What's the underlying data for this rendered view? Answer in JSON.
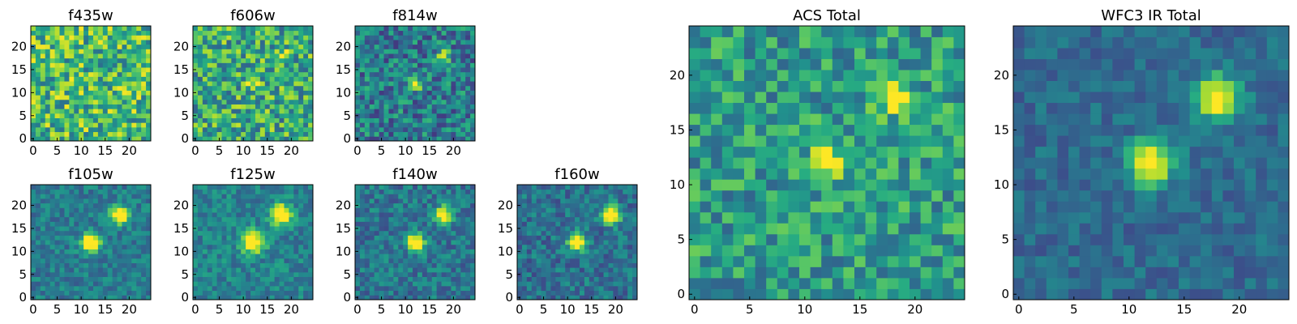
{
  "figure": {
    "background": "#ffffff",
    "colormap": "viridis"
  },
  "chart_data": [
    {
      "type": "heatmap",
      "title": "f435w",
      "grid_size": 25,
      "xlim": [
        0,
        24
      ],
      "ylim": [
        0,
        24
      ],
      "xticks": [
        "0",
        "5",
        "10",
        "15",
        "20"
      ],
      "yticks": [
        "0",
        "5",
        "10",
        "15",
        "20"
      ],
      "sources": [],
      "noise": 0.62,
      "baseline": 0.68,
      "seed": 11,
      "colorbar": false
    },
    {
      "type": "heatmap",
      "title": "f606w",
      "grid_size": 25,
      "xlim": [
        0,
        24
      ],
      "ylim": [
        0,
        24
      ],
      "xticks": [
        "0",
        "5",
        "10",
        "15",
        "20"
      ],
      "yticks": [
        "0",
        "5",
        "10",
        "15",
        "20"
      ],
      "sources": [
        {
          "x": 12,
          "y": 12,
          "sigma": 1.0,
          "amp": 0.35
        },
        {
          "x": 18,
          "y": 18,
          "sigma": 1.0,
          "amp": 0.35
        }
      ],
      "noise": 0.6,
      "baseline": 0.62,
      "seed": 23,
      "colorbar": false
    },
    {
      "type": "heatmap",
      "title": "f814w",
      "grid_size": 25,
      "xlim": [
        0,
        24
      ],
      "ylim": [
        0,
        24
      ],
      "xticks": [
        "0",
        "5",
        "10",
        "15",
        "20"
      ],
      "yticks": [
        "0",
        "5",
        "10",
        "15",
        "20"
      ],
      "sources": [
        {
          "x": 12,
          "y": 12,
          "sigma": 1.0,
          "amp": 0.6
        },
        {
          "x": 18,
          "y": 18,
          "sigma": 1.0,
          "amp": 0.55
        }
      ],
      "noise": 0.5,
      "baseline": 0.42,
      "seed": 37,
      "colorbar": false
    },
    {
      "type": "heatmap",
      "title": "f105w",
      "grid_size": 25,
      "xlim": [
        0,
        24
      ],
      "ylim": [
        0,
        24
      ],
      "xticks": [
        "0",
        "5",
        "10",
        "15",
        "20"
      ],
      "yticks": [
        "0",
        "5",
        "10",
        "15",
        "20"
      ],
      "sources": [
        {
          "x": 12,
          "y": 12,
          "sigma": 1.4,
          "amp": 0.85
        },
        {
          "x": 18,
          "y": 18,
          "sigma": 1.3,
          "amp": 0.85
        }
      ],
      "noise": 0.28,
      "baseline": 0.42,
      "seed": 41,
      "colorbar": false
    },
    {
      "type": "heatmap",
      "title": "f125w",
      "grid_size": 25,
      "xlim": [
        0,
        24
      ],
      "ylim": [
        0,
        24
      ],
      "xticks": [
        "0",
        "5",
        "10",
        "15",
        "20"
      ],
      "yticks": [
        "0",
        "5",
        "10",
        "15",
        "20"
      ],
      "sources": [
        {
          "x": 12,
          "y": 12,
          "sigma": 1.6,
          "amp": 0.8
        },
        {
          "x": 18,
          "y": 18,
          "sigma": 1.5,
          "amp": 0.85
        }
      ],
      "noise": 0.3,
      "baseline": 0.45,
      "seed": 53,
      "colorbar": false
    },
    {
      "type": "heatmap",
      "title": "f140w",
      "grid_size": 25,
      "xlim": [
        0,
        24
      ],
      "ylim": [
        0,
        24
      ],
      "xticks": [
        "0",
        "5",
        "10",
        "15",
        "20"
      ],
      "yticks": [
        "0",
        "5",
        "10",
        "15",
        "20"
      ],
      "sources": [
        {
          "x": 12,
          "y": 12,
          "sigma": 1.3,
          "amp": 0.85
        },
        {
          "x": 18,
          "y": 18,
          "sigma": 1.2,
          "amp": 0.85
        }
      ],
      "noise": 0.33,
      "baseline": 0.4,
      "seed": 67,
      "colorbar": false
    },
    {
      "type": "heatmap",
      "title": "f160w",
      "grid_size": 25,
      "xlim": [
        0,
        24
      ],
      "ylim": [
        0,
        24
      ],
      "xticks": [
        "0",
        "5",
        "10",
        "15",
        "20"
      ],
      "yticks": [
        "0",
        "5",
        "10",
        "15",
        "20"
      ],
      "sources": [
        {
          "x": 12,
          "y": 12,
          "sigma": 1.3,
          "amp": 0.85
        },
        {
          "x": 19,
          "y": 18,
          "sigma": 1.3,
          "amp": 0.95
        }
      ],
      "noise": 0.33,
      "baseline": 0.38,
      "seed": 79,
      "colorbar": false
    },
    {
      "type": "heatmap",
      "title": "ACS Total",
      "grid_size": 25,
      "xlim": [
        0,
        24
      ],
      "ylim": [
        0,
        24
      ],
      "xticks": [
        "0",
        "5",
        "10",
        "15",
        "20"
      ],
      "yticks": [
        "0",
        "5",
        "10",
        "15",
        "20"
      ],
      "sources": [
        {
          "x": 12,
          "y": 12,
          "sigma": 1.1,
          "amp": 0.55
        },
        {
          "x": 18,
          "y": 18,
          "sigma": 1.1,
          "amp": 0.55
        }
      ],
      "noise": 0.45,
      "baseline": 0.55,
      "seed": 97,
      "colorbar": false
    },
    {
      "type": "heatmap",
      "title": "WFC3 IR Total",
      "grid_size": 25,
      "xlim": [
        0,
        24
      ],
      "ylim": [
        0,
        24
      ],
      "xticks": [
        "0",
        "5",
        "10",
        "15",
        "20"
      ],
      "yticks": [
        "0",
        "5",
        "10",
        "15",
        "20"
      ],
      "sources": [
        {
          "x": 12,
          "y": 12,
          "sigma": 1.4,
          "amp": 0.75
        },
        {
          "x": 18,
          "y": 18,
          "sigma": 1.4,
          "amp": 0.75
        }
      ],
      "noise": 0.22,
      "baseline": 0.35,
      "seed": 113,
      "colorbar": false
    }
  ]
}
